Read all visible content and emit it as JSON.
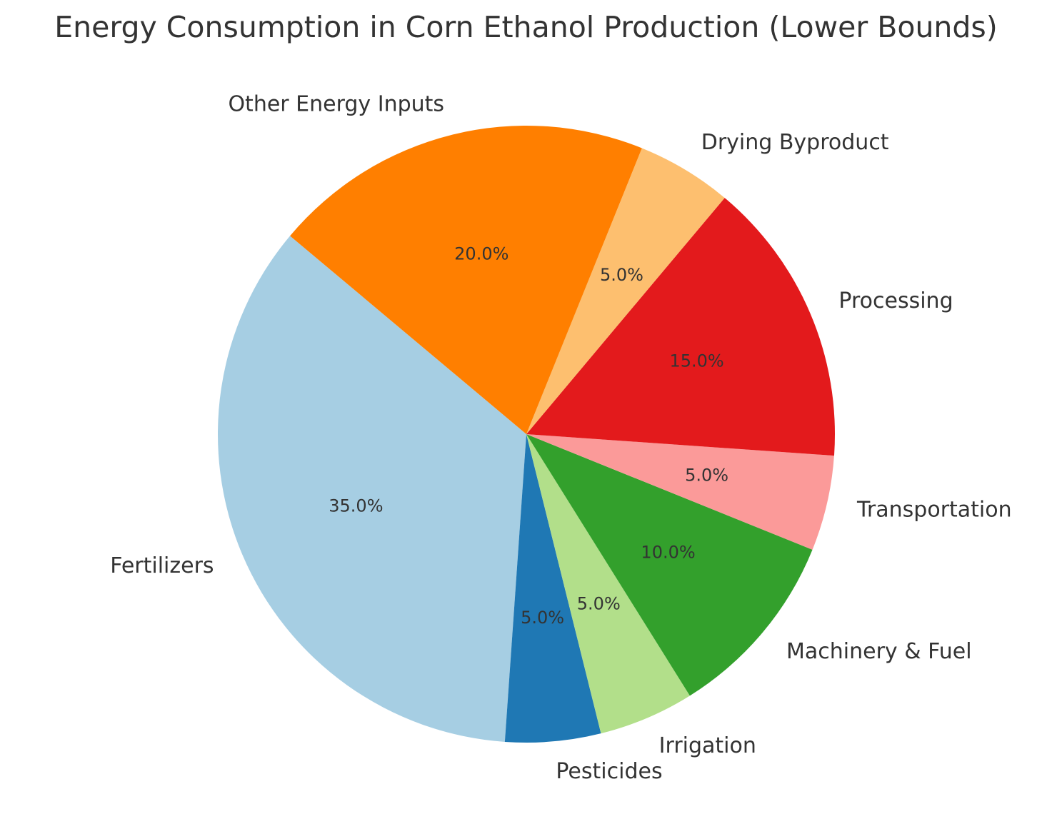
{
  "chart_data": {
    "type": "pie",
    "title": "Energy Consumption in Corn Ethanol Production (Lower Bounds)",
    "categories": [
      "Fertilizers",
      "Pesticides",
      "Irrigation",
      "Machinery & Fuel",
      "Transportation",
      "Processing",
      "Drying Byproduct",
      "Other Energy Inputs"
    ],
    "values": [
      35,
      5,
      5,
      10,
      5,
      15,
      5,
      20
    ],
    "percent_labels": [
      "35.0%",
      "5.0%",
      "5.0%",
      "10.0%",
      "5.0%",
      "15.0%",
      "5.0%",
      "20.0%"
    ],
    "colors": [
      "#a6cee3",
      "#1f78b4",
      "#b2df8a",
      "#33a02c",
      "#fb9a99",
      "#e31a1c",
      "#fdbf6f",
      "#ff7f00"
    ],
    "start_angle_deg": 140,
    "direction": "counterclockwise",
    "legend": "none"
  }
}
